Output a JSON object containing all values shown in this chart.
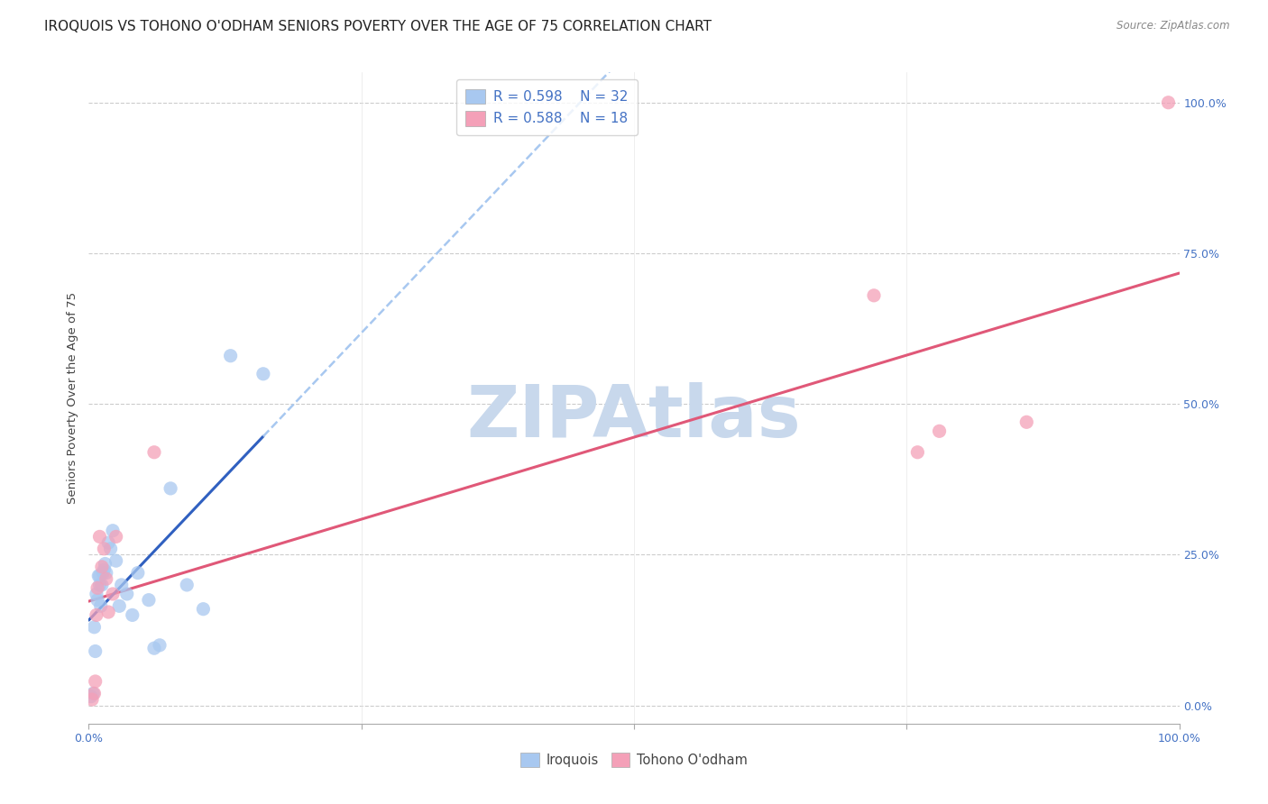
{
  "title": "IROQUOIS VS TOHONO O'ODHAM SENIORS POVERTY OVER THE AGE OF 75 CORRELATION CHART",
  "source": "Source: ZipAtlas.com",
  "ylabel": "Seniors Poverty Over the Age of 75",
  "iroquois_color": "#A8C8F0",
  "tohono_color": "#F4A0B8",
  "iroquois_line_color": "#3060C0",
  "tohono_line_color": "#E05878",
  "r_iroquois": "R = 0.598",
  "n_iroquois": "N = 32",
  "r_tohono": "R = 0.588",
  "n_tohono": "N = 18",
  "iroquois_x": [
    0.002,
    0.004,
    0.005,
    0.006,
    0.007,
    0.008,
    0.009,
    0.01,
    0.01,
    0.011,
    0.012,
    0.013,
    0.014,
    0.015,
    0.016,
    0.018,
    0.02,
    0.022,
    0.025,
    0.028,
    0.03,
    0.035,
    0.04,
    0.045,
    0.055,
    0.06,
    0.065,
    0.075,
    0.09,
    0.105,
    0.13,
    0.16
  ],
  "iroquois_y": [
    0.015,
    0.02,
    0.13,
    0.09,
    0.185,
    0.175,
    0.215,
    0.2,
    0.215,
    0.165,
    0.2,
    0.22,
    0.225,
    0.235,
    0.22,
    0.27,
    0.26,
    0.29,
    0.24,
    0.165,
    0.2,
    0.185,
    0.15,
    0.22,
    0.175,
    0.095,
    0.1,
    0.36,
    0.2,
    0.16,
    0.58,
    0.55
  ],
  "tohono_x": [
    0.003,
    0.005,
    0.006,
    0.007,
    0.008,
    0.01,
    0.012,
    0.014,
    0.016,
    0.018,
    0.022,
    0.025,
    0.06,
    0.72,
    0.76,
    0.78,
    0.86,
    0.99
  ],
  "tohono_y": [
    0.01,
    0.02,
    0.04,
    0.15,
    0.195,
    0.28,
    0.23,
    0.26,
    0.21,
    0.155,
    0.185,
    0.28,
    0.42,
    0.68,
    0.42,
    0.455,
    0.47,
    1.0
  ],
  "xlim": [
    0.0,
    1.0
  ],
  "ylim": [
    -0.03,
    1.05
  ],
  "xtick_positions": [
    0.0,
    1.0
  ],
  "xtick_labels": [
    "0.0%",
    "100.0%"
  ],
  "ytick_positions": [
    0.0,
    0.25,
    0.5,
    0.75,
    1.0
  ],
  "ytick_labels": [
    "0.0%",
    "25.0%",
    "50.0%",
    "75.0%",
    "100.0%"
  ],
  "grid_color": "#CCCCCC",
  "background_color": "#FFFFFF",
  "watermark": "ZIPAtlas",
  "watermark_color": "#C8D8EC",
  "title_fontsize": 11,
  "label_fontsize": 9.5,
  "tick_fontsize": 9,
  "marker_size": 120
}
